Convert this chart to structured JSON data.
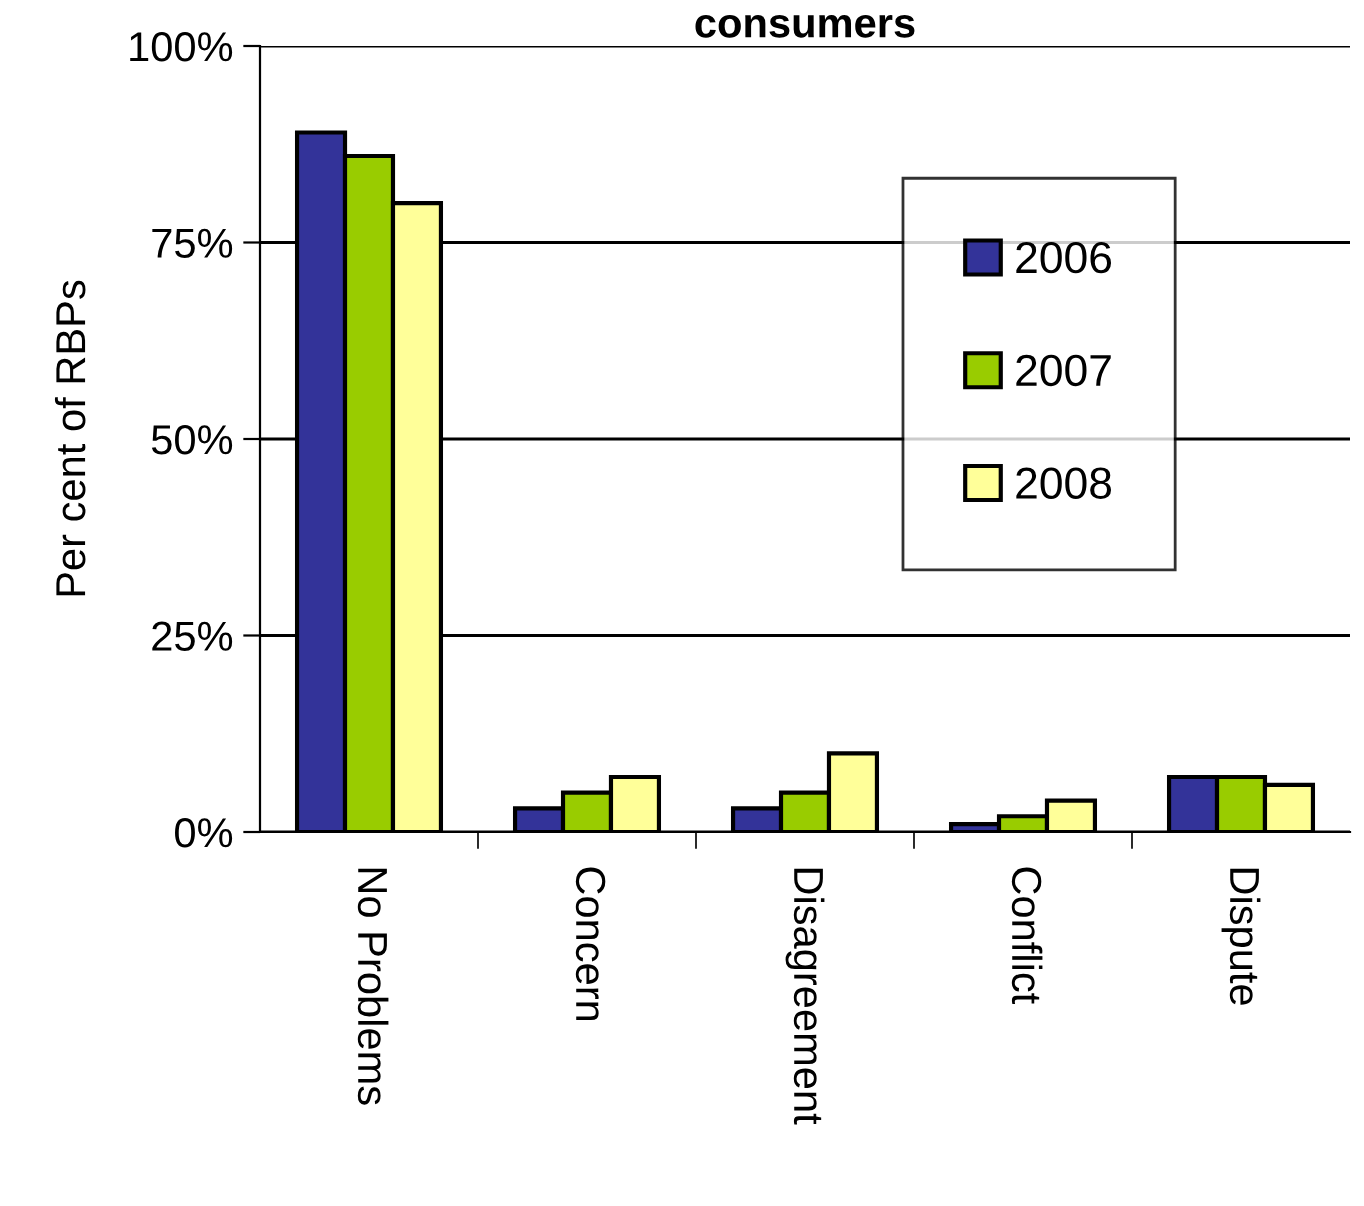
{
  "chart_data": {
    "type": "bar",
    "title": "consumers",
    "ylabel": "Per cent of RBPs",
    "categories": [
      "No Problems",
      "Concern",
      "Disagreement",
      "Conflict",
      "Dispute"
    ],
    "series": [
      {
        "name": "2006",
        "color": "#333399",
        "values": [
          89,
          3,
          3,
          1,
          7
        ]
      },
      {
        "name": "2007",
        "color": "#99cc00",
        "values": [
          86,
          5,
          5,
          2,
          7
        ]
      },
      {
        "name": "2008",
        "color": "#ffff99",
        "values": [
          80,
          7,
          10,
          4,
          6
        ]
      }
    ],
    "ylim": [
      0,
      100
    ],
    "yticks": [
      {
        "value": 0,
        "label": "0%"
      },
      {
        "value": 25,
        "label": "25%"
      },
      {
        "value": 50,
        "label": "50%"
      },
      {
        "value": 75,
        "label": "75%"
      },
      {
        "value": 100,
        "label": "100%"
      }
    ],
    "grid": "y",
    "legend": "top right"
  }
}
